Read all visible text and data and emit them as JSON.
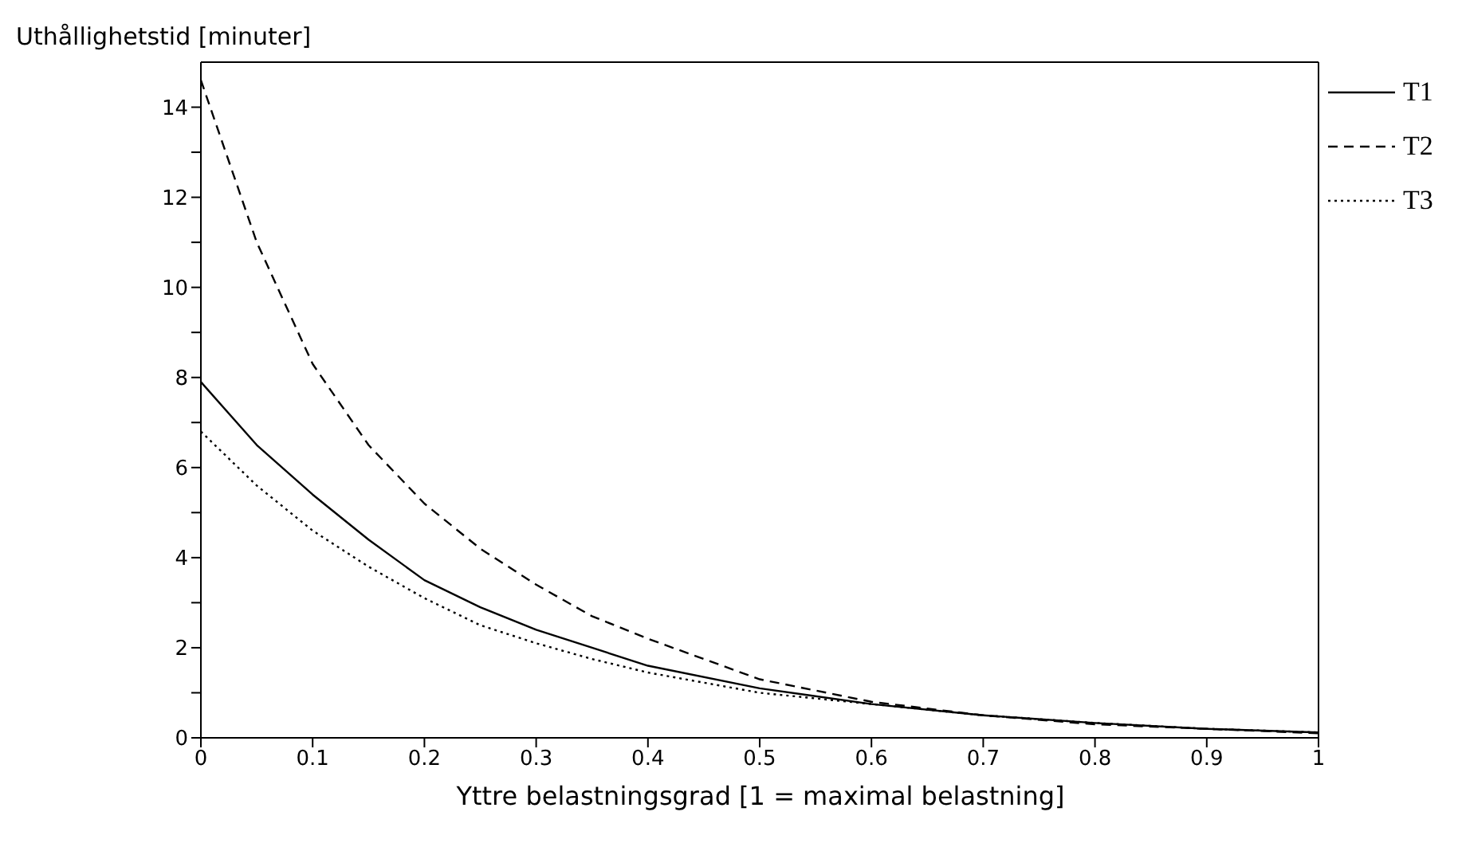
{
  "chart_data": {
    "type": "line",
    "xlabel": "Yttre belastningsgrad [1 = maximal belastning]",
    "ylabel": "Uthållighetstid [minuter]",
    "x": [
      0,
      0.05,
      0.1,
      0.15,
      0.2,
      0.25,
      0.3,
      0.35,
      0.4,
      0.5,
      0.6,
      0.7,
      0.8,
      0.9,
      1
    ],
    "series": [
      {
        "name": "T1",
        "color": "#000000",
        "line_style": "solid",
        "values": [
          7.9,
          6.5,
          5.4,
          4.4,
          3.5,
          2.9,
          2.4,
          2.0,
          1.6,
          1.1,
          0.75,
          0.5,
          0.33,
          0.2,
          0.12
        ]
      },
      {
        "name": "T2",
        "color": "#000000",
        "line_style": "dashed",
        "values": [
          14.6,
          11.0,
          8.3,
          6.5,
          5.2,
          4.2,
          3.4,
          2.7,
          2.2,
          1.3,
          0.8,
          0.5,
          0.3,
          0.2,
          0.1
        ]
      },
      {
        "name": "T3",
        "color": "#000000",
        "line_style": "dotted",
        "values": [
          6.8,
          5.6,
          4.6,
          3.8,
          3.1,
          2.5,
          2.1,
          1.75,
          1.45,
          1.0,
          0.75,
          0.5,
          0.33,
          0.2,
          0.12
        ]
      }
    ],
    "xlim": [
      0,
      1
    ],
    "xticks": [
      0,
      0.1,
      0.2,
      0.3,
      0.4,
      0.5,
      0.6,
      0.7,
      0.8,
      0.9,
      1
    ],
    "ylim": [
      0,
      15
    ],
    "yticks": [
      0,
      {
        "value": 1,
        "label": null
      },
      2,
      {
        "value": 3,
        "label": null
      },
      4,
      {
        "value": 5,
        "label": null
      },
      6,
      {
        "value": 7,
        "label": null
      },
      8,
      {
        "value": 9,
        "label": null
      },
      10,
      {
        "value": 11,
        "label": null
      },
      12,
      {
        "value": 13,
        "label": null
      },
      14
    ],
    "legend": "top right",
    "marker": "none"
  }
}
